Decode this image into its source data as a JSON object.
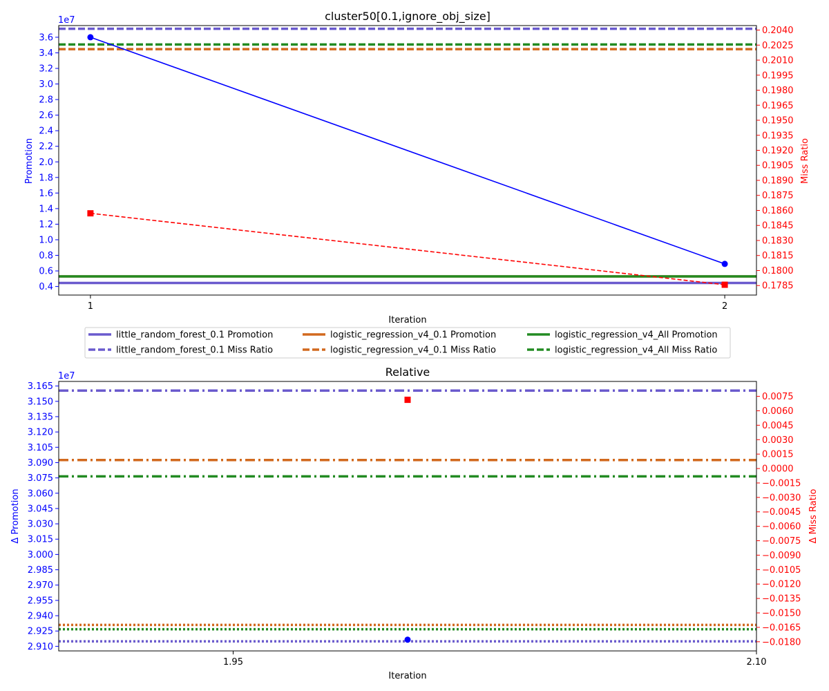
{
  "chart_data": [
    {
      "type": "line",
      "title": "cluster50[0.1,ignore_obj_size]",
      "xlabel": "Iteration",
      "ylabel_left": "Promotion",
      "ylabel_right": "Miss Ratio",
      "left_axis_color": "#0000ff",
      "right_axis_color": "#ff0000",
      "left_offset_label": "1e7",
      "x_ticks": [
        1,
        2
      ],
      "x_tick_labels": [
        "1",
        "2"
      ],
      "xlim": [
        0.95,
        2.05
      ],
      "ylim_left": [
        0.29,
        3.75
      ],
      "ylim_right": [
        0.17755,
        0.20445
      ],
      "left_ticks": [
        "0.4",
        "0.6",
        "0.8",
        "1.0",
        "1.2",
        "1.4",
        "1.6",
        "1.8",
        "2.0",
        "2.2",
        "2.4",
        "2.6",
        "2.8",
        "3.0",
        "3.2",
        "3.4",
        "3.6"
      ],
      "right_ticks": [
        "0.1785",
        "0.1800",
        "0.1815",
        "0.1830",
        "0.1845",
        "0.1860",
        "0.1875",
        "0.1890",
        "0.1905",
        "0.1920",
        "0.1935",
        "0.1950",
        "0.1965",
        "0.1980",
        "0.1995",
        "0.2010",
        "0.2025",
        "0.2040"
      ],
      "series": [
        {
          "axis": "left",
          "color": "#0000ff",
          "marker": "circle",
          "dash": "solid",
          "x": [
            1,
            2
          ],
          "values": [
            3.6,
            0.69
          ]
        },
        {
          "axis": "right",
          "color": "#ff0000",
          "marker": "square",
          "dash": "dashed",
          "x": [
            1,
            2
          ],
          "values": [
            0.18571,
            0.17858
          ]
        }
      ],
      "baselines": [
        {
          "axis": "left",
          "value": 0.445,
          "color": "#6a5acd",
          "style": "solid"
        },
        {
          "axis": "left",
          "value": 0.53,
          "color": "#d2691e",
          "style": "solid"
        },
        {
          "axis": "left",
          "value": 0.53,
          "color": "#228b22",
          "style": "solid"
        },
        {
          "axis": "right",
          "value": 0.20413,
          "color": "#6a5acd",
          "style": "dashed"
        },
        {
          "axis": "right",
          "value": 0.2021,
          "color": "#d2691e",
          "style": "dashed"
        },
        {
          "axis": "right",
          "value": 0.20256,
          "color": "#228b22",
          "style": "dashed"
        }
      ],
      "legend": {
        "placement": "below",
        "entries": [
          {
            "label": "little_random_forest_0.1 Promotion",
            "color": "#6a5acd",
            "style": "solid"
          },
          {
            "label": "little_random_forest_0.1 Miss Ratio",
            "color": "#6a5acd",
            "style": "dashed"
          },
          {
            "label": "logistic_regression_v4_0.1 Promotion",
            "color": "#d2691e",
            "style": "solid"
          },
          {
            "label": "logistic_regression_v4_0.1 Miss Ratio",
            "color": "#d2691e",
            "style": "dashed"
          },
          {
            "label": "logistic_regression_v4_All Promotion",
            "color": "#228b22",
            "style": "solid"
          },
          {
            "label": "logistic_regression_v4_All Miss Ratio",
            "color": "#228b22",
            "style": "dashed"
          }
        ]
      }
    },
    {
      "type": "scatter",
      "title": "Relative",
      "xlabel": "Iteration",
      "ylabel_left": "Δ Promotion",
      "ylabel_right": "Δ Miss Ratio",
      "left_axis_color": "#0000ff",
      "right_axis_color": "#ff0000",
      "left_offset_label": "1e7",
      "x_ticks": [
        1.95,
        2.1
      ],
      "x_tick_labels": [
        "1.95",
        "2.10"
      ],
      "xlim": [
        1.9,
        2.1
      ],
      "ylim_left": [
        2.9055,
        3.1695
      ],
      "ylim_right": [
        -0.01895,
        0.00905
      ],
      "left_ticks": [
        "2.910",
        "2.925",
        "2.940",
        "2.955",
        "2.970",
        "2.985",
        "3.000",
        "3.015",
        "3.030",
        "3.045",
        "3.060",
        "3.075",
        "3.090",
        "3.105",
        "3.120",
        "3.135",
        "3.150",
        "3.165"
      ],
      "right_ticks": [
        "−0.0180",
        "−0.0165",
        "−0.0150",
        "−0.0135",
        "−0.0120",
        "−0.0105",
        "−0.0090",
        "−0.0075",
        "−0.0060",
        "−0.0045",
        "−0.0030",
        "−0.0015",
        "0.0000",
        "0.0015",
        "0.0030",
        "0.0045",
        "0.0060",
        "0.0075"
      ],
      "series": [
        {
          "axis": "left",
          "color": "#0000ff",
          "marker": "circle",
          "x": [
            2
          ],
          "values": [
            2.9165
          ]
        },
        {
          "axis": "right",
          "color": "#ff0000",
          "marker": "square",
          "x": [
            2
          ],
          "values": [
            0.00714
          ]
        }
      ],
      "baselines": [
        {
          "axis": "left",
          "value": 3.1605,
          "color": "#6a5acd",
          "style": "dashdot"
        },
        {
          "axis": "left",
          "value": 3.0925,
          "color": "#d2691e",
          "style": "dashdot"
        },
        {
          "axis": "left",
          "value": 3.0765,
          "color": "#228b22",
          "style": "dashdot"
        },
        {
          "axis": "right",
          "value": -0.01795,
          "color": "#6a5acd",
          "style": "dotted"
        },
        {
          "axis": "right",
          "value": -0.01625,
          "color": "#d2691e",
          "style": "dotted"
        },
        {
          "axis": "right",
          "value": -0.0167,
          "color": "#228b22",
          "style": "dotted"
        }
      ]
    }
  ]
}
